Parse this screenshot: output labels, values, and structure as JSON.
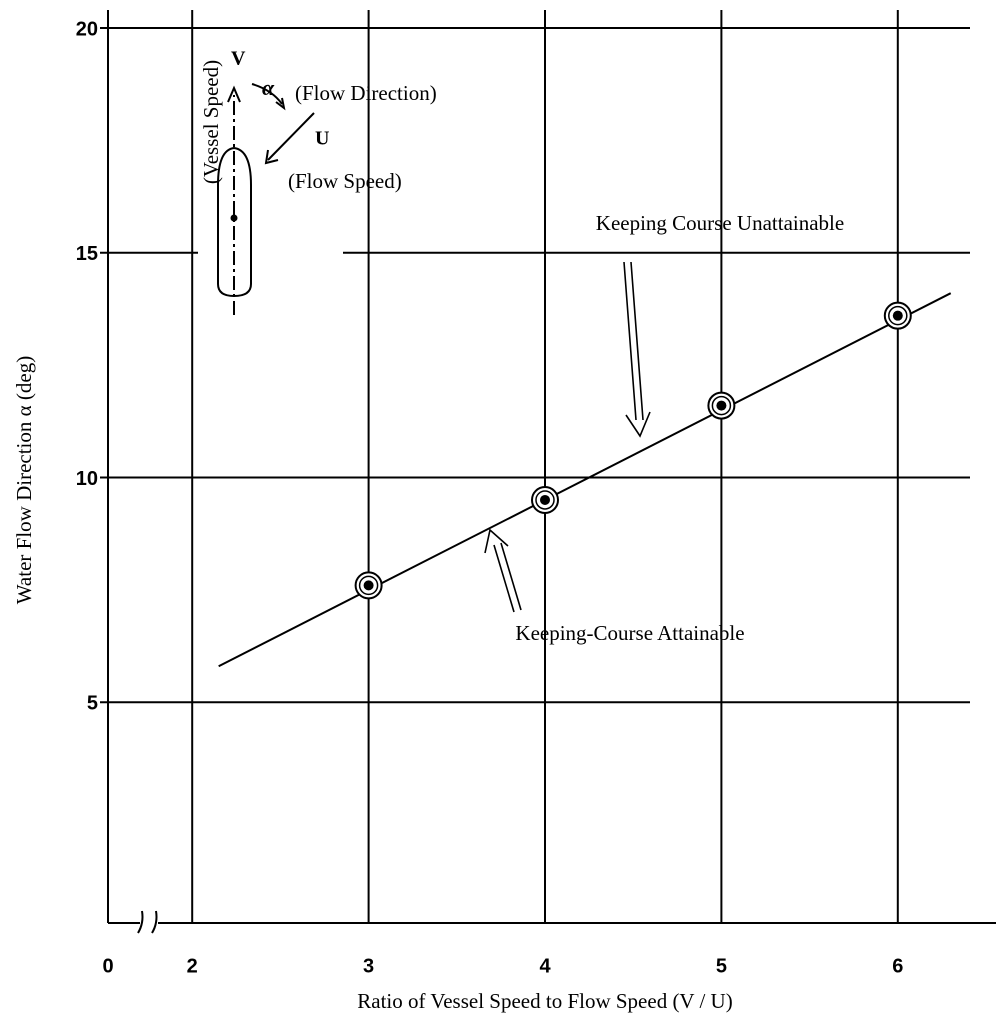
{
  "chart_data": {
    "type": "line",
    "x_label": "Ratio of Vessel Speed to Flow Speed (V / U)",
    "y_label": "Water Flow Direction α (deg)",
    "xlim": [
      1.5,
      6.5
    ],
    "xticks": [
      0,
      2,
      3,
      4,
      5,
      6
    ],
    "x_axis_break": true,
    "ylim": [
      0,
      20.4
    ],
    "yticks": [
      5,
      10,
      15,
      20
    ],
    "grid": true,
    "color": "#000000",
    "line": {
      "x": [
        2.15,
        6.3
      ],
      "values": [
        5.8,
        14.1
      ]
    },
    "points": {
      "x": [
        3,
        4,
        5,
        6
      ],
      "values": [
        7.6,
        9.5,
        11.6,
        13.6
      ]
    },
    "annotations": {
      "unattainable": "Keeping Course Unattainable",
      "attainable": "Keeping-Course Attainable"
    },
    "diagram": {
      "v": "V",
      "alpha": "α",
      "u": "U",
      "flow_direction": "(Flow Direction)",
      "flow_speed": "(Flow Speed)",
      "vessel_speed": "(Vessel Speed)"
    }
  }
}
